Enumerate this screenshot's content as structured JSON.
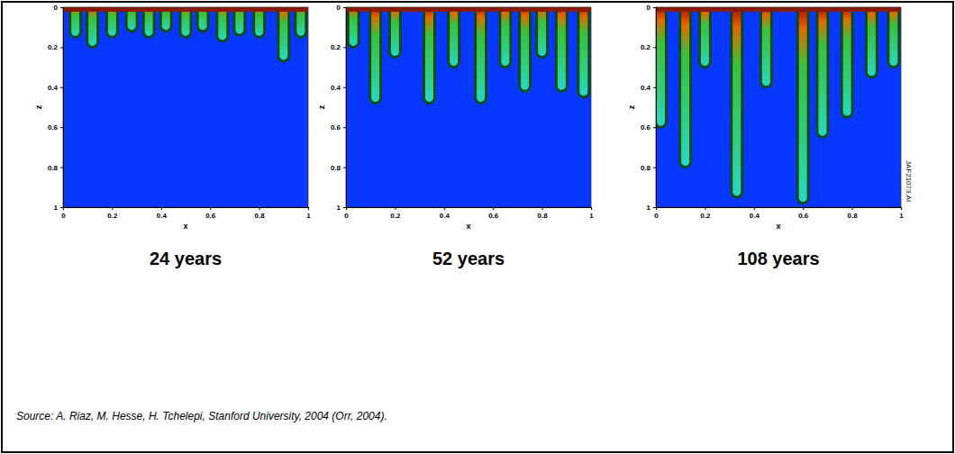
{
  "chart_data": [
    {
      "type": "fingering",
      "caption": "24 years",
      "xlabel": "x",
      "ylabel": "z",
      "xlim": [
        0,
        1
      ],
      "ylim": [
        0,
        1
      ],
      "xticks": [
        0,
        0.2,
        0.4,
        0.6,
        0.8,
        1
      ],
      "yticks": [
        0,
        0.2,
        0.4,
        0.6,
        0.8,
        1
      ],
      "fingers": {
        "x": [
          0.05,
          0.12,
          0.2,
          0.28,
          0.35,
          0.42,
          0.5,
          0.57,
          0.65,
          0.72,
          0.8,
          0.9,
          0.97
        ],
        "z": [
          0.15,
          0.2,
          0.15,
          0.12,
          0.15,
          0.12,
          0.15,
          0.12,
          0.17,
          0.14,
          0.15,
          0.27,
          0.15
        ]
      }
    },
    {
      "type": "fingering",
      "caption": "52 years",
      "xlabel": "x",
      "ylabel": "z",
      "xlim": [
        0,
        1
      ],
      "ylim": [
        0,
        1
      ],
      "xticks": [
        0,
        0.2,
        0.4,
        0.6,
        0.8,
        1
      ],
      "yticks": [
        0,
        0.2,
        0.4,
        0.6,
        0.8,
        1
      ],
      "fingers": {
        "x": [
          0.03,
          0.12,
          0.2,
          0.34,
          0.44,
          0.55,
          0.65,
          0.73,
          0.8,
          0.88,
          0.97
        ],
        "z": [
          0.2,
          0.48,
          0.25,
          0.48,
          0.3,
          0.48,
          0.3,
          0.42,
          0.25,
          0.42,
          0.45
        ]
      }
    },
    {
      "type": "fingering",
      "caption": "108 years",
      "xlabel": "x",
      "ylabel": "z",
      "xlim": [
        0,
        1
      ],
      "ylim": [
        0,
        1
      ],
      "xticks": [
        0,
        0.2,
        0.4,
        0.6,
        0.8,
        1
      ],
      "yticks": [
        0,
        0.2,
        0.4,
        0.6,
        0.8,
        1
      ],
      "fingers": {
        "x": [
          0.02,
          0.12,
          0.2,
          0.33,
          0.45,
          0.6,
          0.68,
          0.78,
          0.88,
          0.97
        ],
        "z": [
          0.6,
          0.8,
          0.3,
          0.95,
          0.4,
          0.98,
          0.65,
          0.55,
          0.35,
          0.3
        ]
      }
    }
  ],
  "side_label": "JAF21073.AI",
  "source": "Source: A. Riaz, M. Hesse, H. Tchelepi, Stanford University, 2004 (Orr, 2004)."
}
